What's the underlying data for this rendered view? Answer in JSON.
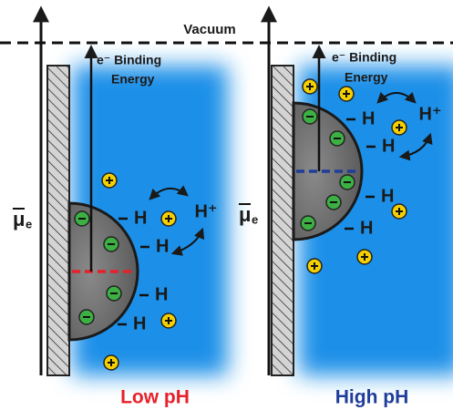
{
  "vacuum_label": "Vacuum",
  "panels": [
    {
      "caption": "Low pH",
      "binding_energy": [
        "e⁻ Binding",
        "Energy"
      ],
      "potential": {
        "symbol": "μ",
        "subscript": "e"
      },
      "surface_groups": [
        "H",
        "H",
        "H",
        "H"
      ],
      "proton": "H⁺"
    },
    {
      "caption": "High pH",
      "binding_energy": [
        "e⁻ Binding",
        "Energy"
      ],
      "potential": {
        "symbol": "μ",
        "subscript": "e"
      },
      "surface_groups": [
        "H",
        "H",
        "H",
        "H"
      ],
      "proton": "H⁺"
    }
  ]
}
